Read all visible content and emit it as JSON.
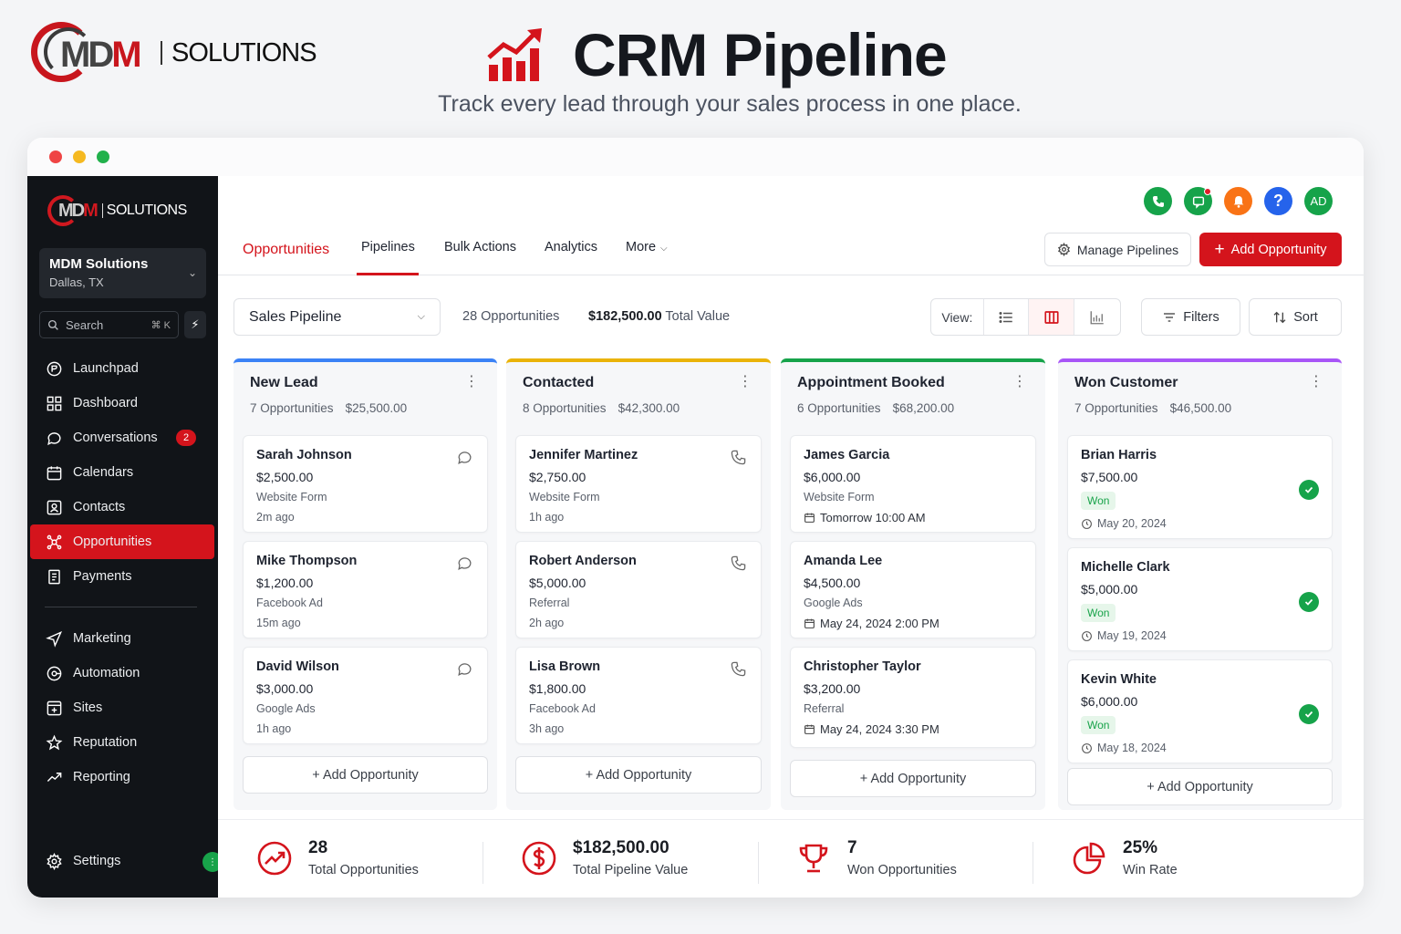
{
  "brand": {
    "mark_letters_1": "MD",
    "mark_letters_2": "M",
    "text": "SOLUTIONS",
    "accent": "#d4141c"
  },
  "hero": {
    "title": "CRM Pipeline",
    "subtitle": "Track every lead through your sales process in one place.",
    "icon": "trending-bar-chart-icon"
  },
  "sidebar": {
    "account_name": "MDM Solutions",
    "account_location": "Dallas, TX",
    "search_label": "Search",
    "search_shortcut": "⌘ K",
    "items": [
      {
        "label": "Launchpad",
        "icon": "rocket-icon"
      },
      {
        "label": "Dashboard",
        "icon": "grid-icon"
      },
      {
        "label": "Conversations",
        "icon": "chat-icon",
        "badge": "2"
      },
      {
        "label": "Calendars",
        "icon": "calendar-icon"
      },
      {
        "label": "Contacts",
        "icon": "contact-card-icon"
      },
      {
        "label": "Opportunities",
        "icon": "network-icon",
        "active": true
      },
      {
        "label": "Payments",
        "icon": "receipt-icon"
      }
    ],
    "items2": [
      {
        "label": "Marketing",
        "icon": "send-icon"
      },
      {
        "label": "Automation",
        "icon": "automation-icon"
      },
      {
        "label": "Sites",
        "icon": "site-icon"
      },
      {
        "label": "Reputation",
        "icon": "star-icon"
      },
      {
        "label": "Reporting",
        "icon": "trend-icon"
      }
    ],
    "settings_label": "Settings"
  },
  "topbar": {
    "avatar_initials": "AD",
    "help_symbol": "?"
  },
  "tabs": {
    "opportunities": "Opportunities",
    "pipelines": "Pipelines",
    "bulk_actions": "Bulk Actions",
    "analytics": "Analytics",
    "more": "More"
  },
  "actions": {
    "manage_pipelines": "Manage Pipelines",
    "add_opportunity": "Add Opportunity"
  },
  "toolbar": {
    "pipeline": "Sales Pipeline",
    "count": "28 Opportunities",
    "value": "$182,500.00",
    "value_suffix": "Total Value",
    "view_label": "View:",
    "filters": "Filters",
    "sort": "Sort"
  },
  "columns": [
    {
      "title": "New Lead",
      "count": "7 Opportunities",
      "value": "$25,500.00",
      "color": "#3b82f6",
      "add_label": "+ Add Opportunity",
      "cards": [
        {
          "name": "Sarah Johnson",
          "amount": "$2,500.00",
          "source": "Website Form",
          "time": "2m ago"
        },
        {
          "name": "Mike Thompson",
          "amount": "$1,200.00",
          "source": "Facebook Ad",
          "time": "15m ago"
        },
        {
          "name": "David Wilson",
          "amount": "$3,000.00",
          "source": "Google Ads",
          "time": "1h ago"
        }
      ]
    },
    {
      "title": "Contacted",
      "count": "8 Opportunities",
      "value": "$42,300.00",
      "color": "#eab308",
      "add_label": "+ Add Opportunity",
      "cards": [
        {
          "name": "Jennifer Martinez",
          "amount": "$2,750.00",
          "source": "Website Form",
          "time": "1h ago"
        },
        {
          "name": "Robert Anderson",
          "amount": "$5,000.00",
          "source": "Referral",
          "time": "2h ago"
        },
        {
          "name": "Lisa Brown",
          "amount": "$1,800.00",
          "source": "Facebook Ad",
          "time": "3h ago"
        }
      ]
    },
    {
      "title": "Appointment Booked",
      "count": "6 Opportunities",
      "value": "$68,200.00",
      "color": "#16a34a",
      "add_label": "+ Add Opportunity",
      "cards": [
        {
          "name": "James Garcia",
          "amount": "$6,000.00",
          "source": "Website Form",
          "time": "Tomorrow 10:00 AM"
        },
        {
          "name": "Amanda Lee",
          "amount": "$4,500.00",
          "source": "Google Ads",
          "time": "May 24, 2024 2:00 PM"
        },
        {
          "name": "Christopher Taylor",
          "amount": "$3,200.00",
          "source": "Referral",
          "time": "May 24, 2024 3:30 PM"
        }
      ]
    },
    {
      "title": "Won Customer",
      "count": "7 Opportunities",
      "value": "$46,500.00",
      "color": "#a855f7",
      "add_label": "+ Add Opportunity",
      "cards": [
        {
          "name": "Brian Harris",
          "amount": "$7,500.00",
          "status": "Won",
          "time": "May 20, 2024"
        },
        {
          "name": "Michelle Clark",
          "amount": "$5,000.00",
          "status": "Won",
          "time": "May 19, 2024"
        },
        {
          "name": "Kevin White",
          "amount": "$6,000.00",
          "status": "Won",
          "time": "May 18, 2024"
        }
      ]
    }
  ],
  "stats": [
    {
      "value": "28",
      "label": "Total Opportunities",
      "icon": "trend-circle-icon"
    },
    {
      "value": "$182,500.00",
      "label": "Total Pipeline Value",
      "icon": "dollar-circle-icon"
    },
    {
      "value": "7",
      "label": "Won Opportunities",
      "icon": "trophy-icon"
    },
    {
      "value": "25%",
      "label": "Win Rate",
      "icon": "pie-chart-icon"
    }
  ]
}
